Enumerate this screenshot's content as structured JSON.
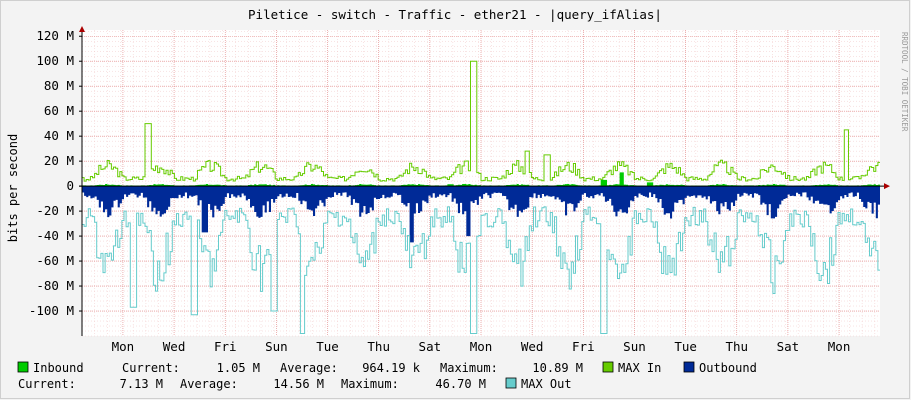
{
  "chart_data": {
    "type": "area",
    "title": "Piletice - switch - Traffic - ether21 - |query_ifAlias|",
    "ylabel": "bits per second",
    "watermark": "RRDTOOL / TOBI OETIKER",
    "ylim": [
      -120000000,
      125000000
    ],
    "y_ticks": [
      {
        "value": 120000000,
        "label": "120 M"
      },
      {
        "value": 100000000,
        "label": "100 M"
      },
      {
        "value": 80000000,
        "label": "80 M"
      },
      {
        "value": 60000000,
        "label": "60 M"
      },
      {
        "value": 40000000,
        "label": "40 M"
      },
      {
        "value": 20000000,
        "label": "20 M"
      },
      {
        "value": 0,
        "label": "0"
      },
      {
        "value": -20000000,
        "label": "-20 M"
      },
      {
        "value": -40000000,
        "label": "-40 M"
      },
      {
        "value": -60000000,
        "label": "-60 M"
      },
      {
        "value": -80000000,
        "label": "-80 M"
      },
      {
        "value": -100000000,
        "label": "-100 M"
      }
    ],
    "x_range_days": [
      0,
      15.6
    ],
    "x_ticks": [
      {
        "day": 0.8,
        "label": "Mon"
      },
      {
        "day": 1.8,
        "label": "Wed"
      },
      {
        "day": 2.8,
        "label": "Fri"
      },
      {
        "day": 3.8,
        "label": "Sun"
      },
      {
        "day": 4.8,
        "label": "Tue"
      },
      {
        "day": 5.8,
        "label": "Thu"
      },
      {
        "day": 6.8,
        "label": "Sat"
      },
      {
        "day": 7.8,
        "label": "Mon"
      },
      {
        "day": 8.8,
        "label": "Wed"
      },
      {
        "day": 9.8,
        "label": "Fri"
      },
      {
        "day": 10.8,
        "label": "Sun"
      },
      {
        "day": 11.8,
        "label": "Tue"
      },
      {
        "day": 12.8,
        "label": "Thu"
      },
      {
        "day": 13.8,
        "label": "Sat"
      },
      {
        "day": 14.8,
        "label": "Mon"
      }
    ],
    "grid": true,
    "series": [
      {
        "name": "Inbound",
        "color": "#00cc00",
        "kind": "area",
        "sign": 1,
        "base": 1000000,
        "spikes": [
          [
            10.55,
            11000000
          ],
          [
            10.2,
            5000000
          ],
          [
            11.1,
            3000000
          ],
          [
            7.2,
            1500000
          ]
        ]
      },
      {
        "name": "MAX In",
        "color": "#66cc00",
        "kind": "line",
        "sign": 1,
        "base": 12000000,
        "spikes": [
          [
            1.3,
            50000000
          ],
          [
            7.65,
            100000000
          ],
          [
            14.95,
            45000000
          ],
          [
            8.7,
            28000000
          ],
          [
            9.1,
            25000000
          ]
        ]
      },
      {
        "name": "Outbound",
        "color": "#002a97",
        "kind": "area",
        "sign": -1,
        "base": 15000000,
        "spikes": [
          [
            6.45,
            45000000
          ],
          [
            7.55,
            40000000
          ],
          [
            2.4,
            37000000
          ]
        ]
      },
      {
        "name": "MAX Out",
        "color": "#66cccc",
        "kind": "line",
        "sign": -1,
        "base": 50000000,
        "spikes": [
          [
            4.3,
            118000000
          ],
          [
            7.65,
            118000000
          ],
          [
            10.2,
            118000000
          ],
          [
            3.75,
            100000000
          ],
          [
            2.2,
            103000000
          ],
          [
            1.0,
            97000000
          ]
        ]
      }
    ],
    "legend": {
      "row1": {
        "inbound_label": "Inbound",
        "current_label": "Current:",
        "current_value": "1.05 M",
        "average_label": "Average:",
        "average_value": "964.19 k",
        "maximum_label": "Maximum:",
        "maximum_value": "10.89 M",
        "max_in_label": "MAX In",
        "outbound_label": "Outbound"
      },
      "row2": {
        "current_label": "Current:",
        "current_value": "7.13 M",
        "average_label": "Average:",
        "average_value": "14.56 M",
        "maximum_label": "Maximum:",
        "maximum_value": "46.70 M",
        "max_out_label": "MAX Out"
      },
      "colors": {
        "inbound": "#00cc00",
        "max_in": "#66cc00",
        "outbound": "#002a97",
        "max_out": "#66cccc"
      }
    }
  }
}
